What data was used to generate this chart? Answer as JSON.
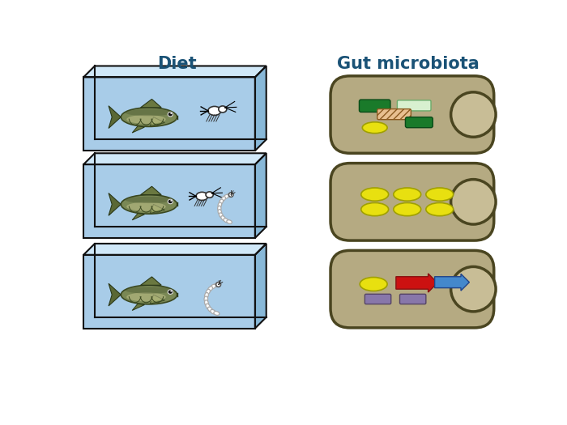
{
  "title_diet": "Diet",
  "title_gut": "Gut microbiota",
  "title_color": "#1a5276",
  "title_fontsize": 15,
  "bg_color": "#ffffff",
  "gut_bg_color": "#b5aa82",
  "gut_border_color": "#4a4520",
  "gut_circle_color": "#c8bd96",
  "tank_front_color": "#a8cce8",
  "tank_top_color": "#d0e8f8",
  "tank_right_color": "#88b8d8",
  "tank_edge_color": "#111111",
  "tanks": [
    {
      "food": "crustacean_only"
    },
    {
      "food": "crustacean_and_larva"
    },
    {
      "food": "larva_only"
    }
  ],
  "gut_microbes": [
    "diverse_top",
    "yellow_ovals_only",
    "diverse_bottom"
  ]
}
